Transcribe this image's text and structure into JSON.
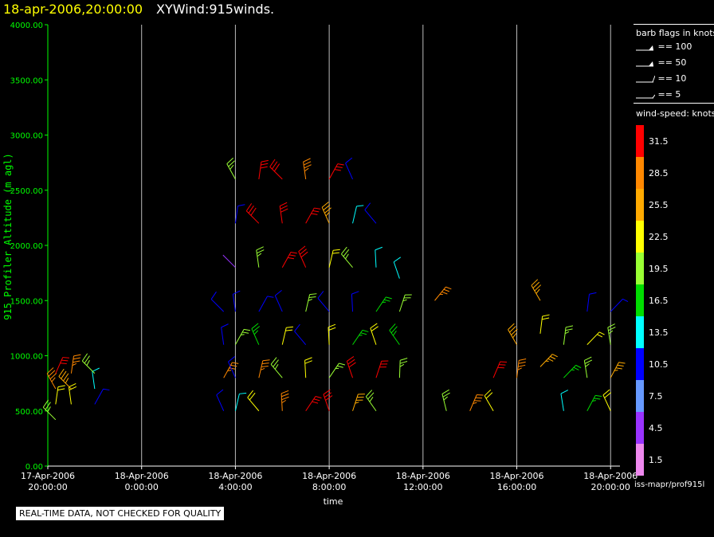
{
  "header": {
    "date": "18-apr-2006,20:00:00",
    "product": "XYWind:915winds."
  },
  "notice": "REAL-TIME DATA, NOT CHECKED FOR QUALITY",
  "source": "iss-mapr/prof915l",
  "legend": {
    "barb_title": "barb flags in knots",
    "barbs": [
      {
        "label": "== 100",
        "kind": "pennant"
      },
      {
        "label": "== 50",
        "kind": "pennant-small"
      },
      {
        "label": "== 10",
        "kind": "full"
      },
      {
        "label": "== 5",
        "kind": "half"
      }
    ],
    "speed_title": "wind-speed: knots",
    "speeds": [
      {
        "label": "31.5",
        "color": "#ff0000"
      },
      {
        "label": "28.5",
        "color": "#ff8800"
      },
      {
        "label": "25.5",
        "color": "#ffaa00"
      },
      {
        "label": "22.5",
        "color": "#ffff00"
      },
      {
        "label": "19.5",
        "color": "#99ff33"
      },
      {
        "label": "16.5",
        "color": "#00dd00"
      },
      {
        "label": "13.5",
        "color": "#00ffff"
      },
      {
        "label": "10.5",
        "color": "#0000ff"
      },
      {
        "label": "7.5",
        "color": "#6699ff"
      },
      {
        "label": "4.5",
        "color": "#9933ff"
      },
      {
        "label": "1.5",
        "color": "#ee88ee"
      }
    ]
  },
  "chart_data": {
    "type": "scatter",
    "title": "XYWind:915winds.",
    "xlabel": "time",
    "ylabel": "915 Profiler Altitude (m agl)",
    "ylim": [
      0,
      4000
    ],
    "xlim": [
      "2006-04-17 20:00",
      "2006-04-18 20:24"
    ],
    "yticks": [
      "0.00",
      "500.00",
      "1000.00",
      "1500.00",
      "2000.00",
      "2500.00",
      "3000.00",
      "3500.00",
      "4000.00"
    ],
    "xticks": [
      {
        "date": "17-Apr-2006",
        "time": "20:00:00"
      },
      {
        "date": "18-Apr-2006",
        "time": "0:00:00"
      },
      {
        "date": "18-Apr-2006",
        "time": "4:00:00"
      },
      {
        "date": "18-Apr-2006",
        "time": "8:00:00"
      },
      {
        "date": "18-Apr-2006",
        "time": "12:00:00"
      },
      {
        "date": "18-Apr-2006",
        "time": "16:00:00"
      },
      {
        "date": "18-Apr-2006",
        "time": "20:00:00"
      }
    ],
    "grid": "vertical",
    "wind_profiles": [
      {
        "time": "2006-04-17 20:20",
        "altitudes": [
          420,
          560,
          700,
          840
        ],
        "speed_kt": [
          19,
          22,
          28,
          31
        ]
      },
      {
        "time": "2006-04-17 21:00",
        "altitudes": [
          560,
          700,
          840
        ],
        "speed_kt": [
          22,
          25,
          28
        ]
      },
      {
        "time": "2006-04-17 22:00",
        "altitudes": [
          560,
          700,
          840
        ],
        "speed_kt": [
          10,
          13,
          19
        ]
      },
      {
        "time": "2006-04-18 03:30",
        "altitudes": [
          500,
          800,
          1100,
          1400
        ],
        "speed_kt": [
          10,
          28,
          10,
          10
        ]
      },
      {
        "time": "2006-04-18 04:00",
        "altitudes": [
          500,
          800,
          1100,
          1400,
          1800,
          2200,
          2600
        ],
        "speed_kt": [
          13,
          10,
          19,
          10,
          4,
          10,
          19
        ]
      },
      {
        "time": "2006-04-18 05:00",
        "altitudes": [
          500,
          800,
          1100,
          1400,
          1800,
          2200,
          2600
        ],
        "speed_kt": [
          22,
          28,
          16,
          10,
          19,
          31,
          31
        ]
      },
      {
        "time": "2006-04-18 06:00",
        "altitudes": [
          500,
          800,
          1100,
          1400,
          1800,
          2200,
          2600
        ],
        "speed_kt": [
          28,
          19,
          22,
          10,
          31,
          31,
          31
        ]
      },
      {
        "time": "2006-04-18 07:00",
        "altitudes": [
          500,
          800,
          1100,
          1400,
          1800,
          2200,
          2600
        ],
        "speed_kt": [
          31,
          22,
          10,
          19,
          31,
          31,
          28
        ]
      },
      {
        "time": "2006-04-18 08:00",
        "altitudes": [
          500,
          800,
          1100,
          1400,
          1800,
          2200,
          2600
        ],
        "speed_kt": [
          31,
          19,
          22,
          10,
          22,
          25,
          31
        ]
      },
      {
        "time": "2006-04-18 09:00",
        "altitudes": [
          500,
          800,
          1100,
          1400,
          1800,
          2200,
          2600
        ],
        "speed_kt": [
          25,
          31,
          16,
          10,
          19,
          13,
          10
        ]
      },
      {
        "time": "2006-04-18 10:00",
        "altitudes": [
          500,
          800,
          1100,
          1400,
          1800,
          2200
        ],
        "speed_kt": [
          19,
          31,
          22,
          16,
          13,
          10
        ]
      },
      {
        "time": "2006-04-18 11:00",
        "altitudes": [
          800,
          1100,
          1400,
          1700
        ],
        "speed_kt": [
          19,
          16,
          19,
          13
        ]
      },
      {
        "time": "2006-04-18 12:30",
        "altitudes": [
          1500
        ],
        "speed_kt": [
          28
        ]
      },
      {
        "time": "2006-04-18 13:00",
        "altitudes": [
          500
        ],
        "speed_kt": [
          19
        ]
      },
      {
        "time": "2006-04-18 14:00",
        "altitudes": [
          500
        ],
        "speed_kt": [
          28
        ]
      },
      {
        "time": "2006-04-18 15:00",
        "altitudes": [
          500,
          800
        ],
        "speed_kt": [
          22,
          31
        ]
      },
      {
        "time": "2006-04-18 16:00",
        "altitudes": [
          800,
          1100
        ],
        "speed_kt": [
          28,
          25
        ]
      },
      {
        "time": "2006-04-18 17:00",
        "altitudes": [
          900,
          1200,
          1500
        ],
        "speed_kt": [
          25,
          22,
          25
        ]
      },
      {
        "time": "2006-04-18 18:00",
        "altitudes": [
          500,
          800,
          1100
        ],
        "speed_kt": [
          13,
          16,
          19
        ]
      },
      {
        "time": "2006-04-18 19:00",
        "altitudes": [
          500,
          800,
          1100,
          1400
        ],
        "speed_kt": [
          16,
          19,
          22,
          10
        ]
      },
      {
        "time": "2006-04-18 20:00",
        "altitudes": [
          500,
          800,
          1100,
          1400
        ],
        "speed_kt": [
          22,
          25,
          19,
          10
        ]
      }
    ]
  }
}
